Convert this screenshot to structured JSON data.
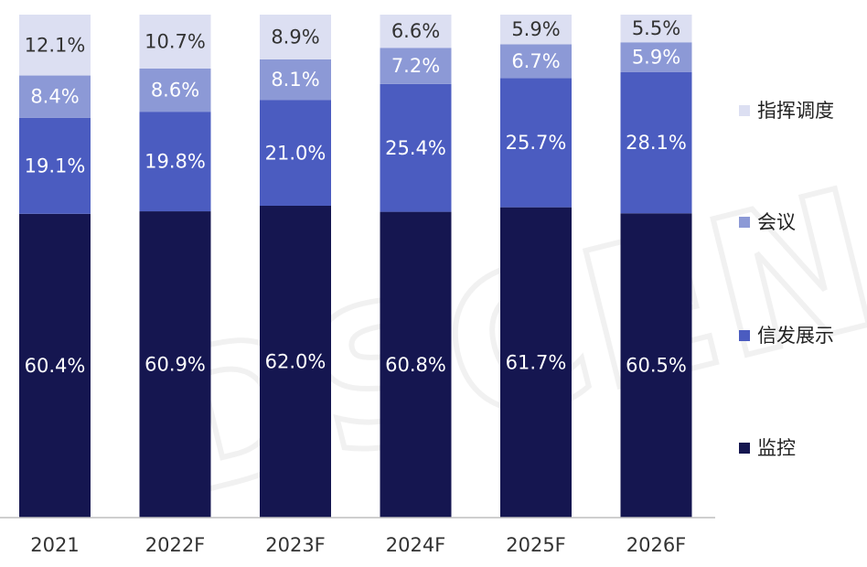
{
  "chart_data": {
    "type": "bar",
    "stacked": true,
    "categories": [
      "2021",
      "2022F",
      "2023F",
      "2024F",
      "2025F",
      "2026F"
    ],
    "series": [
      {
        "name": "监控",
        "color": "#151650",
        "label_color": "#ffffff",
        "values": [
          60.4,
          60.9,
          62.0,
          60.8,
          61.7,
          60.5
        ],
        "labels": [
          "60.4%",
          "60.9%",
          "62.0%",
          "60.8%",
          "61.7%",
          "60.5%"
        ]
      },
      {
        "name": "信发展示",
        "color": "#4b5cc0",
        "label_color": "#ffffff",
        "values": [
          19.1,
          19.8,
          21.0,
          25.4,
          25.7,
          28.1
        ],
        "labels": [
          "19.1%",
          "19.8%",
          "21.0%",
          "25.4%",
          "25.7%",
          "28.1%"
        ]
      },
      {
        "name": "会议",
        "color": "#8c99d6",
        "label_color": "#ffffff",
        "values": [
          8.4,
          8.6,
          8.1,
          7.2,
          6.7,
          5.9
        ],
        "labels": [
          "8.4%",
          "8.6%",
          "8.1%",
          "7.2%",
          "6.7%",
          "5.9%"
        ]
      },
      {
        "name": "指挥调度",
        "color": "#dcdff2",
        "label_color": "#333333",
        "values": [
          12.1,
          10.7,
          8.9,
          6.6,
          5.9,
          5.5
        ],
        "labels": [
          "12.1%",
          "10.7%",
          "8.9%",
          "6.6%",
          "5.9%",
          "5.5%"
        ]
      }
    ],
    "legend_order": [
      "指挥调度",
      "会议",
      "信发展示",
      "监控"
    ],
    "legend_position": "right",
    "ylim": [
      0,
      100
    ],
    "grid": false
  },
  "watermark": {
    "text": "DSCEN"
  }
}
